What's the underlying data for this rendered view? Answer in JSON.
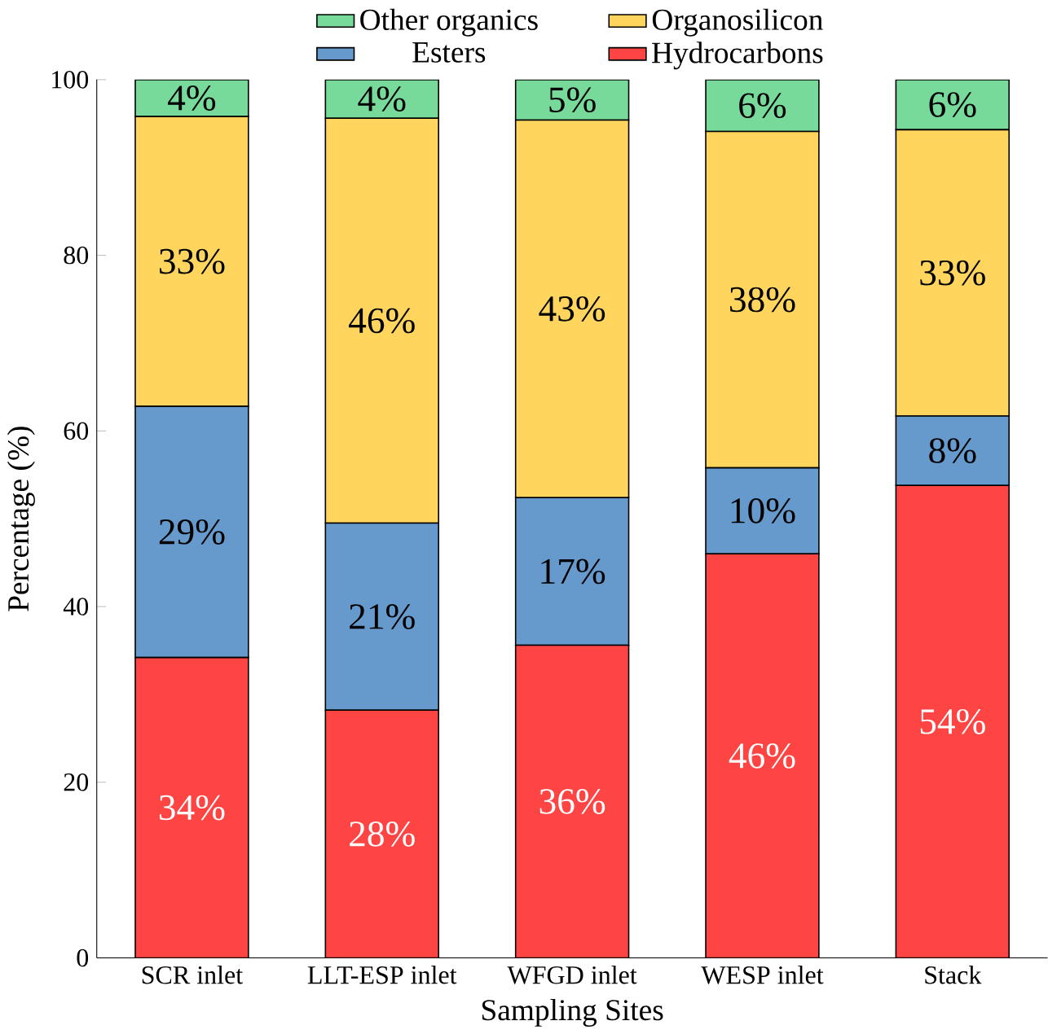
{
  "chart_data": {
    "type": "bar",
    "stacked": true,
    "xlabel": "Sampling Sites",
    "ylabel": "Percentage (%)",
    "categories": [
      "SCR inlet",
      "LLT-ESP inlet",
      "WFGD inlet",
      "WESP inlet",
      "Stack"
    ],
    "ylim": [
      0,
      100
    ],
    "yticks": [
      0,
      20,
      40,
      60,
      80,
      100
    ],
    "legend": "top",
    "grid": false,
    "series": [
      {
        "name": "Hydrocarbons",
        "color": "#ff4444",
        "values": [
          34.2,
          28.2,
          35.6,
          46.0,
          53.8
        ],
        "value_labels": [
          "34%",
          "28%",
          "36%",
          "46%",
          "54%"
        ]
      },
      {
        "name": "Esters",
        "color": "#6699cc",
        "values": [
          28.6,
          21.3,
          16.8,
          9.8,
          7.9
        ],
        "value_labels": [
          "29%",
          "21%",
          "17%",
          "10%",
          "8%"
        ]
      },
      {
        "name": "Organosilicon",
        "color": "#ffd55e",
        "values": [
          33.0,
          46.1,
          43.0,
          38.3,
          32.6
        ],
        "value_labels": [
          "33%",
          "46%",
          "43%",
          "38%",
          "33%"
        ]
      },
      {
        "name": "Other organics",
        "color": "#77d99a",
        "values": [
          4.2,
          4.4,
          4.6,
          5.9,
          5.7
        ],
        "value_labels": [
          "4%",
          "4%",
          "5%",
          "6%",
          "6%"
        ]
      }
    ]
  }
}
